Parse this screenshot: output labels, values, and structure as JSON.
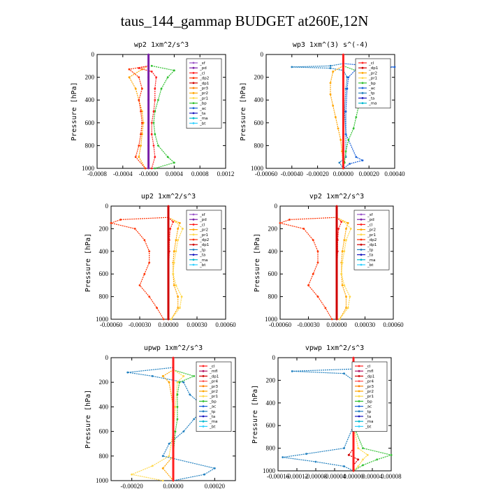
{
  "title": "taus_144_gammap  BUDGET at260E,12N",
  "colors": {
    "_sf": "#9a55c8",
    "_pd": "#7a1fa8",
    "_cl": "#ff1f1f",
    "_dp2": "#ff3000",
    "_dp1": "#d00000",
    "_pr3": "#ff8000",
    "_pr2": "#ffa500",
    "_pr1": "#ffd84a",
    "_bp": "#30c030",
    "_ac": "#1860d8",
    "_ta": "#1818c0",
    "_tp": "#1f7fbf",
    "_ma": "#00b8d0",
    "_bt": "#30d0ff",
    "_mfl": "#b01060",
    "_pr4": "#ff5050"
  },
  "chart_data": [
    {
      "type": "line",
      "title": "wp2  1xm^2/s^3",
      "ylabel": "Pressure [hPa]",
      "xlim": [
        -0.0008,
        0.0012
      ],
      "ylim": [
        1000,
        0
      ],
      "y_ticks": [
        0,
        200,
        400,
        600,
        800,
        1000
      ],
      "x_ticks": [
        -0.0008,
        -0.0004,
        0.0,
        0.0004,
        0.0008,
        0.0012
      ],
      "x_tick_labels": [
        "-0.0008",
        "-0.0004",
        "-0.0000",
        "0.0004",
        "0.0008",
        "0.0012"
      ],
      "legend": [
        "_sf",
        "_pd",
        "_cl",
        "_dp2",
        "_dp1",
        "_pr3",
        "_pr2",
        "_pr1",
        "_bp",
        "_ac",
        "_ta",
        "_ma",
        "_bt"
      ],
      "legend_loc": "top-right",
      "series": [
        {
          "name": "_bp",
          "p": [
            100,
            140,
            200,
            300,
            400,
            500,
            600,
            700,
            800,
            900,
            950,
            1000
          ],
          "v": [
            5e-05,
            0.0004,
            0.0003,
            0.0002,
            0.00015,
            0.0001,
            8e-05,
            0.0001,
            0.00015,
            0.0003,
            0.0004,
            0.0001
          ]
        },
        {
          "name": "_pr2",
          "p": [
            100,
            130,
            200,
            300,
            400,
            500,
            600,
            700,
            800,
            900,
            1000
          ],
          "v": [
            0,
            -0.0001,
            -0.0003,
            -0.0002,
            -0.00015,
            -0.0001,
            -8e-05,
            -0.0001,
            -0.00012,
            -0.00015,
            -5e-05
          ]
        },
        {
          "name": "_dp2",
          "p": [
            100,
            130,
            200,
            300,
            400,
            500,
            600,
            700,
            800,
            900,
            1000
          ],
          "v": [
            0,
            -0.0003,
            -0.00015,
            -0.0001,
            -0.00015,
            -0.00012,
            -0.0001,
            -0.00012,
            -0.00015,
            -0.0002,
            -5e-05
          ]
        },
        {
          "name": "_cl",
          "p": [
            100,
            120,
            150,
            200,
            300,
            400,
            500,
            600,
            700,
            800,
            900,
            1000
          ],
          "v": [
            0,
            -0.00015,
            5e-05,
            0.00012,
            0.0001,
            0.0001,
            8e-05,
            5e-05,
            5e-05,
            8e-05,
            0.0001,
            5e-05
          ]
        },
        {
          "name": "_pd",
          "p": [
            0,
            200,
            400,
            600,
            800,
            1000
          ],
          "v": [
            0,
            0,
            0,
            0,
            0,
            0
          ]
        }
      ]
    },
    {
      "type": "line",
      "title": "wp3  1xm^(3) s^(-4)",
      "ylabel": "Pressure [hPa]",
      "xlim": [
        -0.0006,
        0.0004
      ],
      "ylim": [
        1000,
        0
      ],
      "y_ticks": [
        0,
        200,
        400,
        600,
        800,
        1000
      ],
      "x_ticks": [
        -0.0006,
        -0.0004,
        -0.0002,
        0.0,
        0.0002,
        0.0004
      ],
      "x_tick_labels": [
        "-0.00060",
        "-0.00040",
        "-0.00020",
        "0.00000",
        "0.00020",
        "0.00040"
      ],
      "legend": [
        "_cl",
        "_dp1",
        "_pr2",
        "_pr1",
        "_bp",
        "_ac",
        "_tp",
        "_ta",
        "_ma"
      ],
      "legend_loc": "top-right",
      "series": [
        {
          "name": "_tp",
          "p": [
            80,
            100,
            110,
            120,
            140,
            200,
            300,
            500,
            700,
            900,
            950,
            1000
          ],
          "v": [
            0,
            -0.0001,
            -0.0004,
            -0.0001,
            0,
            3e-05,
            2e-05,
            1e-05,
            2e-05,
            2e-05,
            -3e-05,
            0
          ]
        },
        {
          "name": "_ac",
          "p": [
            80,
            100,
            110,
            130,
            200,
            300,
            500,
            700,
            900,
            930,
            960,
            1000
          ],
          "v": [
            0,
            0.0002,
            0.0004,
            0.0001,
            4e-05,
            3e-05,
            2e-05,
            2e-05,
            0.0001,
            0.00015,
            5e-05,
            0
          ]
        },
        {
          "name": "_bp",
          "p": [
            100,
            150,
            250,
            350,
            450,
            550,
            650,
            750,
            850,
            950,
            1000
          ],
          "v": [
            0,
            0.00012,
            0.00018,
            0.00016,
            0.00012,
            0.0001,
            8e-05,
            4e-05,
            2e-05,
            1e-05,
            0
          ]
        },
        {
          "name": "_pr2",
          "p": [
            100,
            150,
            250,
            350,
            450,
            550,
            650,
            750,
            850,
            1000
          ],
          "v": [
            0,
            -8e-05,
            -0.0001,
            -0.0001,
            -8e-05,
            -6e-05,
            -4e-05,
            -2e-05,
            -1e-05,
            0
          ]
        },
        {
          "name": "_cl",
          "p": [
            0,
            200,
            400,
            600,
            800,
            1000
          ],
          "v": [
            0,
            0,
            0,
            0,
            0,
            0
          ]
        }
      ]
    },
    {
      "type": "line",
      "title": "up2  1xm^2/s^3",
      "ylabel": "Pressure [hPa]",
      "xlim": [
        -0.0006,
        0.0006
      ],
      "ylim": [
        1000,
        0
      ],
      "y_ticks": [
        0,
        200,
        400,
        600,
        800,
        1000
      ],
      "x_ticks": [
        -0.0006,
        -0.0003,
        0.0,
        0.0003,
        0.0006
      ],
      "x_tick_labels": [
        "-0.00060",
        "-0.00030",
        "0.00000",
        "0.00030",
        "0.00060"
      ],
      "legend": [
        "_sf",
        "_pd",
        "_cl",
        "_pr2",
        "_pr1",
        "_dp2",
        "_dp1",
        "_tp",
        "_ta",
        "_ma",
        "_bt"
      ],
      "legend_loc": "top-right",
      "series": [
        {
          "name": "_dp2",
          "p": [
            100,
            120,
            150,
            200,
            300,
            400,
            500,
            600,
            700,
            800,
            900,
            1000
          ],
          "v": [
            0,
            -0.0005,
            -0.0006,
            -0.00035,
            -0.00025,
            -0.0002,
            -0.0002,
            -0.00025,
            -0.0003,
            -0.0002,
            -0.00012,
            -5e-05
          ]
        },
        {
          "name": "_pr2",
          "p": [
            100,
            150,
            200,
            300,
            400,
            500,
            600,
            700,
            800,
            900,
            1000
          ],
          "v": [
            0,
            0.00012,
            0.0001,
            8e-05,
            6e-05,
            5e-05,
            5e-05,
            6e-05,
            0.0001,
            0.0001,
            3e-05
          ]
        },
        {
          "name": "_pr1",
          "p": [
            100,
            140,
            200,
            300,
            400,
            500,
            600,
            700,
            800,
            900,
            1000
          ],
          "v": [
            0,
            8e-05,
            0.00015,
            0.0001,
            8e-05,
            6e-05,
            5e-05,
            8e-05,
            0.00014,
            0.00012,
            3e-05
          ]
        },
        {
          "name": "_cl",
          "p": [
            100,
            140,
            200,
            300,
            400,
            600,
            800,
            1000
          ],
          "v": [
            0,
            5e-05,
            2e-05,
            1e-05,
            1e-05,
            0,
            0,
            0
          ]
        },
        {
          "name": "_dp1",
          "p": [
            0,
            200,
            400,
            600,
            800,
            1000
          ],
          "v": [
            0,
            0,
            0,
            0,
            0,
            0
          ]
        }
      ]
    },
    {
      "type": "line",
      "title": "vp2  1xm^2/s^3",
      "ylabel": "Pressure [hPa]",
      "xlim": [
        -0.0006,
        0.0006
      ],
      "ylim": [
        1000,
        0
      ],
      "y_ticks": [
        0,
        200,
        400,
        600,
        800,
        1000
      ],
      "x_ticks": [
        -0.0006,
        -0.0003,
        0.0,
        0.0003,
        0.0006
      ],
      "x_tick_labels": [
        "-0.00060",
        "-0.00030",
        "0.00000",
        "0.00030",
        "0.00060"
      ],
      "legend": [
        "_sf",
        "_pd",
        "_cl",
        "_pr2",
        "_pr1",
        "_dp2",
        "_dp1",
        "_tp",
        "_ta",
        "_ma",
        "_bt"
      ],
      "legend_loc": "top-right",
      "series": [
        {
          "name": "_dp2",
          "p": [
            100,
            120,
            150,
            200,
            300,
            400,
            500,
            600,
            700,
            800,
            900,
            1000
          ],
          "v": [
            0,
            -0.0005,
            -0.0006,
            -0.00035,
            -0.00025,
            -0.0002,
            -0.0002,
            -0.00025,
            -0.0003,
            -0.0002,
            -0.00012,
            -5e-05
          ]
        },
        {
          "name": "_pr2",
          "p": [
            100,
            150,
            200,
            300,
            400,
            500,
            600,
            700,
            800,
            900,
            1000
          ],
          "v": [
            0,
            0.00012,
            0.0001,
            8e-05,
            6e-05,
            5e-05,
            5e-05,
            6e-05,
            0.0001,
            0.0001,
            3e-05
          ]
        },
        {
          "name": "_pr1",
          "p": [
            100,
            140,
            200,
            300,
            400,
            500,
            600,
            700,
            800,
            900,
            1000
          ],
          "v": [
            0,
            8e-05,
            0.00015,
            0.0001,
            8e-05,
            6e-05,
            5e-05,
            8e-05,
            0.00014,
            0.00012,
            3e-05
          ]
        },
        {
          "name": "_cl",
          "p": [
            100,
            140,
            200,
            300,
            400,
            600,
            800,
            1000
          ],
          "v": [
            0,
            5e-05,
            2e-05,
            1e-05,
            1e-05,
            0,
            0,
            0
          ]
        },
        {
          "name": "_dp1",
          "p": [
            0,
            200,
            400,
            600,
            800,
            1000
          ],
          "v": [
            0,
            0,
            0,
            0,
            0,
            0
          ]
        }
      ]
    },
    {
      "type": "line",
      "title": "upwp  1xm^2/s^3",
      "ylabel": "Pressure [hPa]",
      "xlim": [
        -0.0003,
        0.0003
      ],
      "ylim": [
        1000,
        0
      ],
      "y_ticks": [
        0,
        200,
        400,
        600,
        800,
        1000
      ],
      "x_ticks": [
        -0.0002,
        0.0,
        0.0002
      ],
      "x_tick_labels": [
        "-0.00020",
        "0.00000",
        "0.00020"
      ],
      "legend": [
        "_cl",
        "_mfl",
        "_dp1",
        "_pr4",
        "_pr3",
        "_pr2",
        "_pr1",
        "_bp",
        "_ac",
        "_tp",
        "_ta",
        "_ma",
        "_bt"
      ],
      "legend_loc": "top-right",
      "series": [
        {
          "name": "_tp",
          "p": [
            80,
            120,
            150,
            200,
            300,
            400,
            500,
            600,
            700,
            800,
            900,
            950,
            1000
          ],
          "v": [
            0,
            -0.00022,
            -0.0001,
            5e-05,
            8e-05,
            0.00015,
            0.0001,
            5e-05,
            -2e-05,
            -5e-05,
            0.0002,
            0.00015,
            0
          ]
        },
        {
          "name": "_bp",
          "p": [
            100,
            150,
            200,
            300,
            400,
            500,
            600,
            800,
            1000
          ],
          "v": [
            0,
            0.0001,
            3e-05,
            2e-05,
            2e-05,
            2e-05,
            1e-05,
            0,
            0
          ]
        },
        {
          "name": "_pr1",
          "p": [
            100,
            150,
            200,
            400,
            600,
            800,
            880,
            950,
            1000
          ],
          "v": [
            0,
            5e-05,
            2e-05,
            1e-05,
            0,
            -2e-05,
            -0.0001,
            -0.0002,
            -5e-05
          ]
        },
        {
          "name": "_pr2",
          "p": [
            100,
            150,
            200,
            400,
            600,
            800,
            900,
            1000
          ],
          "v": [
            0,
            -5e-05,
            -2e-05,
            0,
            0,
            0,
            -5e-05,
            0
          ]
        },
        {
          "name": "_cl",
          "p": [
            0,
            200,
            400,
            600,
            800,
            1000
          ],
          "v": [
            0,
            0,
            0,
            0,
            0,
            0
          ]
        }
      ]
    },
    {
      "type": "line",
      "title": "vpwp  1xm^2/s^3",
      "ylabel": "Pressure [hPa]",
      "xlim": [
        -0.00016,
        8e-05
      ],
      "ylim": [
        1000,
        0
      ],
      "y_ticks": [
        0,
        200,
        400,
        600,
        800,
        1000
      ],
      "x_ticks": [
        -0.00016,
        -0.00012,
        -8e-05,
        -4e-05,
        0.0,
        4e-05,
        8e-05
      ],
      "x_tick_labels": [
        "-0.00016",
        "-0.00012",
        "-0.00008",
        "-0.00004",
        "0.00000",
        "0.00004",
        "0.00008"
      ],
      "legend": [
        "_cl",
        "_mfl",
        "_dp1",
        "_pr4",
        "_pr3",
        "_pr2",
        "_pr1",
        "_bp",
        "_ac",
        "_tp",
        "_ta",
        "_ma",
        "_bt"
      ],
      "legend_loc": "top-right",
      "series": [
        {
          "name": "_tp",
          "p": [
            100,
            120,
            140,
            200,
            400,
            600,
            800,
            850,
            880,
            920,
            960,
            1000
          ],
          "v": [
            0,
            -0.00013,
            -2e-05,
            0,
            0,
            0,
            -2e-05,
            -0.0001,
            -0.00015,
            -8e-05,
            -2e-05,
            0
          ]
        },
        {
          "name": "_bp",
          "p": [
            100,
            150,
            200,
            300,
            400,
            600,
            800,
            860,
            900,
            950,
            1000
          ],
          "v": [
            0,
            2e-05,
            1e-05,
            1e-05,
            0,
            0,
            2e-05,
            8e-05,
            5e-05,
            2e-05,
            0
          ]
        },
        {
          "name": "_pr1",
          "p": [
            100,
            150,
            200,
            600,
            800,
            860,
            900,
            960,
            1000
          ],
          "v": [
            0,
            1e-05,
            0,
            0,
            1e-05,
            3e-05,
            2e-05,
            1e-05,
            0
          ]
        },
        {
          "name": "_dp1",
          "p": [
            800,
            860,
            900,
            950,
            1000
          ],
          "v": [
            0,
            -1e-05,
            1e-05,
            0,
            0
          ]
        },
        {
          "name": "_cl",
          "p": [
            0,
            200,
            400,
            600,
            800,
            1000
          ],
          "v": [
            0,
            0,
            0,
            0,
            0,
            0
          ]
        }
      ]
    }
  ]
}
